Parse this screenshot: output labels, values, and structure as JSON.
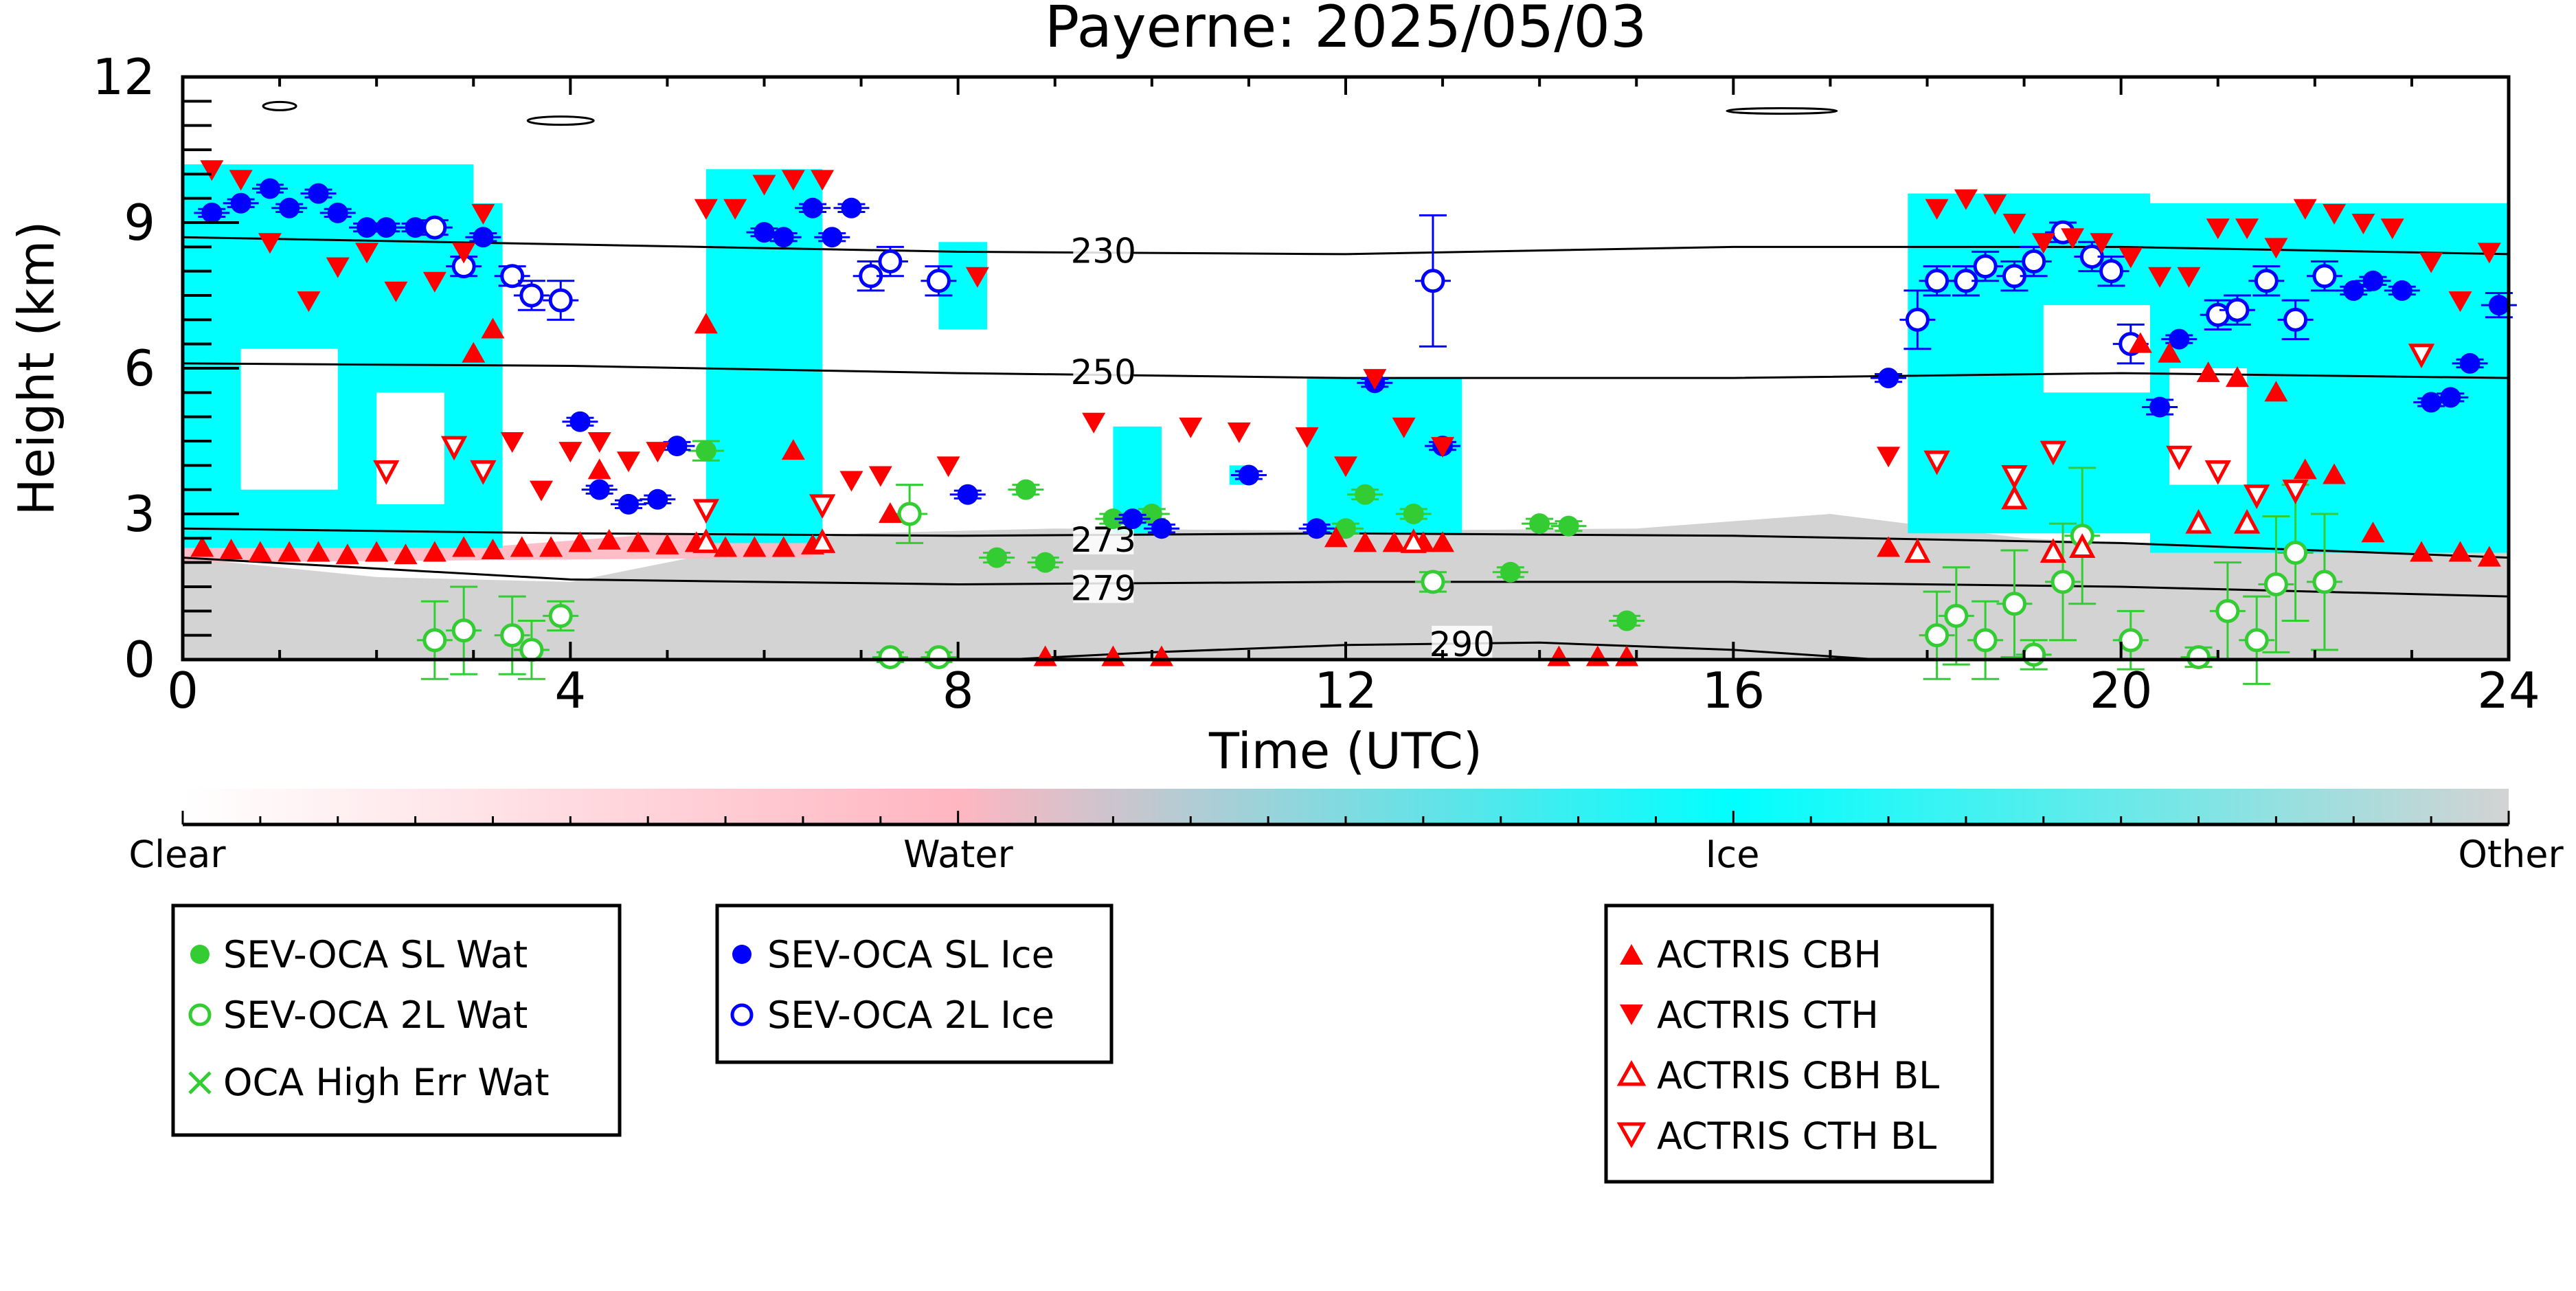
{
  "chart_data": {
    "type": "scatter",
    "title": "Payerne: 2025/05/03",
    "xlabel": "Time (UTC)",
    "ylabel": "Height (km)",
    "xlim": [
      0,
      24
    ],
    "ylim": [
      0,
      12
    ],
    "xticks": [
      "0",
      "4",
      "8",
      "12",
      "16",
      "20",
      "24"
    ],
    "yticks": [
      "0",
      "3",
      "6",
      "9",
      "12"
    ],
    "background": "cloud classification curtain (clear / water / ice / other)",
    "colorbar": {
      "labels": [
        "Clear",
        "Water",
        "Ice",
        "Other"
      ],
      "colors": [
        "#ffffff",
        "#ffb6c1",
        "#00ffff",
        "#d3d3d3"
      ]
    },
    "isotherms": [
      {
        "label": "230",
        "x": [
          0,
          4,
          8,
          12,
          16,
          20,
          24
        ],
        "y": [
          8.7,
          8.55,
          8.4,
          8.35,
          8.5,
          8.5,
          8.35
        ],
        "label_at": [
          9.5,
          8.4
        ]
      },
      {
        "label": "250",
        "x": [
          0,
          4,
          8,
          12,
          16,
          20,
          24
        ],
        "y": [
          6.1,
          6.05,
          5.9,
          5.8,
          5.8,
          5.9,
          5.8
        ],
        "label_at": [
          9.5,
          5.9
        ]
      },
      {
        "label": "273",
        "x": [
          0,
          4,
          8,
          12,
          16,
          20,
          24
        ],
        "y": [
          2.7,
          2.6,
          2.55,
          2.6,
          2.55,
          2.4,
          2.1
        ],
        "label_at": [
          9.5,
          2.45
        ]
      },
      {
        "label": "279",
        "x": [
          0,
          4,
          8,
          12,
          16,
          20,
          24
        ],
        "y": [
          2.1,
          1.65,
          1.55,
          1.6,
          1.6,
          1.5,
          1.3
        ],
        "label_at": [
          9.5,
          1.45
        ]
      },
      {
        "label": "290",
        "x": [
          8.5,
          10,
          12,
          14,
          16,
          17.5
        ],
        "y": [
          0,
          0.15,
          0.3,
          0.35,
          0.2,
          0
        ],
        "label_at": [
          13.2,
          0.3
        ]
      }
    ],
    "series": [
      {
        "name": "SEV-OCA SL Wat",
        "marker": "filled-circle",
        "color": "#33cc33",
        "x": [
          5.4,
          8.4,
          8.7,
          8.9,
          9.6,
          10.0,
          12.0,
          12.2,
          12.7,
          13.7,
          14.0,
          14.3,
          14.9
        ],
        "y": [
          4.3,
          2.1,
          3.5,
          2.0,
          2.9,
          3.0,
          2.7,
          3.4,
          3.0,
          1.8,
          2.8,
          2.75,
          0.8
        ],
        "err": [
          0.2,
          0.1,
          0.1,
          0.1,
          0.1,
          0.1,
          0.1,
          0.1,
          0.1,
          0.1,
          0.1,
          0.1,
          0.1
        ]
      },
      {
        "name": "SEV-OCA 2L Wat",
        "marker": "open-circle",
        "color": "#33cc33",
        "x": [
          2.6,
          2.9,
          3.4,
          3.6,
          3.9,
          7.3,
          7.5,
          7.8,
          12.9,
          18.1,
          18.3,
          18.6,
          18.9,
          19.1,
          19.4,
          19.6,
          20.1,
          20.8,
          21.1,
          21.4,
          21.6,
          21.8,
          22.1
        ],
        "y": [
          0.4,
          0.6,
          0.5,
          0.2,
          0.9,
          0.05,
          3.0,
          0.05,
          1.6,
          0.5,
          0.9,
          0.4,
          1.15,
          0.1,
          1.6,
          2.55,
          0.4,
          0.05,
          1.0,
          0.4,
          1.55,
          2.2,
          1.6
        ],
        "err": [
          0.8,
          0.9,
          0.8,
          0.6,
          0.3,
          0.1,
          0.6,
          0.1,
          0.2,
          0.9,
          1.0,
          0.8,
          1.1,
          0.3,
          1.2,
          1.4,
          0.6,
          0.2,
          1.0,
          0.9,
          1.4,
          1.4,
          1.4
        ]
      },
      {
        "name": "OCA High Err Wat",
        "marker": "cross",
        "color": "#33cc33",
        "x": [],
        "y": []
      },
      {
        "name": "SEV-OCA SL Ice",
        "marker": "filled-circle",
        "color": "#0000ff",
        "x": [
          0.3,
          0.6,
          0.9,
          1.1,
          1.4,
          1.6,
          1.9,
          2.1,
          2.4,
          3.1,
          4.1,
          4.3,
          4.6,
          4.9,
          5.1,
          6.0,
          6.2,
          6.5,
          6.7,
          6.9,
          8.1,
          9.8,
          10.1,
          11.0,
          11.7,
          12.3,
          13.0,
          17.6,
          20.4,
          20.6,
          22.4,
          22.6,
          22.9,
          23.2,
          23.4,
          23.6,
          23.9
        ],
        "y": [
          9.2,
          9.4,
          9.7,
          9.3,
          9.6,
          9.2,
          8.9,
          8.9,
          8.9,
          8.7,
          4.9,
          3.5,
          3.2,
          3.3,
          4.4,
          8.8,
          8.7,
          9.3,
          8.7,
          9.3,
          3.4,
          2.9,
          2.7,
          3.8,
          2.7,
          5.7,
          4.4,
          5.8,
          5.2,
          6.6,
          7.6,
          7.8,
          7.6,
          5.3,
          5.4,
          6.1,
          7.3
        ],
        "err": [
          0.08,
          0.08,
          0.08,
          0.08,
          0.08,
          0.08,
          0.08,
          0.08,
          0.08,
          0.08,
          0.08,
          0.08,
          0.08,
          0.08,
          0.08,
          0.08,
          0.08,
          0.08,
          0.08,
          0.08,
          0.08,
          0.08,
          0.08,
          0.08,
          0.08,
          0.08,
          0.08,
          0.08,
          0.15,
          0.08,
          0.08,
          0.08,
          0.08,
          0.08,
          0.08,
          0.08,
          0.25
        ]
      },
      {
        "name": "SEV-OCA 2L Ice",
        "marker": "open-circle",
        "color": "#0000ff",
        "x": [
          2.6,
          2.9,
          3.4,
          3.6,
          3.9,
          7.1,
          7.3,
          7.8,
          12.9,
          17.9,
          18.1,
          18.4,
          18.6,
          18.9,
          19.1,
          19.4,
          19.7,
          19.9,
          20.1,
          21.0,
          21.2,
          21.5,
          21.8,
          22.1
        ],
        "y": [
          8.9,
          8.1,
          7.9,
          7.5,
          7.4,
          7.9,
          8.2,
          7.8,
          7.8,
          7.0,
          7.8,
          7.8,
          8.1,
          7.9,
          8.2,
          8.8,
          8.3,
          8.0,
          6.5,
          7.1,
          7.2,
          7.8,
          7.0,
          7.9
        ],
        "err": [
          0.15,
          0.2,
          0.2,
          0.3,
          0.4,
          0.3,
          0.3,
          0.3,
          1.35,
          0.6,
          0.3,
          0.3,
          0.3,
          0.3,
          0.3,
          0.2,
          0.3,
          0.3,
          0.4,
          0.3,
          0.3,
          0.3,
          0.4,
          0.3
        ]
      },
      {
        "name": "ACTRIS CBH",
        "marker": "triangle-up-filled",
        "color": "#ff0000",
        "x": [
          0.2,
          0.5,
          0.8,
          1.1,
          1.4,
          1.7,
          2.0,
          2.3,
          2.6,
          2.9,
          3.2,
          3.5,
          3.8,
          4.1,
          4.4,
          4.7,
          5.0,
          5.3,
          5.6,
          5.9,
          6.2,
          6.5,
          3.0,
          3.2,
          4.3,
          5.4,
          6.3,
          7.3,
          8.9,
          9.6,
          10.1,
          11.9,
          12.2,
          12.5,
          12.8,
          13.0,
          14.2,
          14.6,
          14.9,
          17.6,
          20.2,
          20.5,
          20.9,
          21.2,
          21.6,
          21.9,
          22.2,
          22.6,
          23.1,
          23.5,
          23.8
        ],
        "y": [
          2.3,
          2.25,
          2.2,
          2.2,
          2.2,
          2.15,
          2.2,
          2.15,
          2.2,
          2.3,
          2.25,
          2.3,
          2.3,
          2.4,
          2.45,
          2.4,
          2.35,
          2.4,
          2.3,
          2.3,
          2.3,
          2.35,
          6.3,
          6.8,
          3.9,
          6.9,
          4.3,
          3.0,
          0.05,
          0.05,
          0.05,
          2.5,
          2.4,
          2.4,
          2.4,
          2.4,
          0.05,
          0.05,
          0.05,
          2.3,
          6.5,
          6.3,
          5.9,
          5.8,
          5.5,
          3.9,
          3.8,
          2.6,
          2.2,
          2.2,
          2.1
        ]
      },
      {
        "name": "ACTRIS CTH",
        "marker": "triangle-down-filled",
        "color": "#ff0000",
        "x": [
          0.3,
          0.6,
          0.9,
          1.3,
          1.6,
          1.9,
          2.2,
          2.6,
          2.9,
          3.1,
          3.4,
          3.7,
          4.0,
          4.3,
          4.6,
          4.9,
          5.4,
          5.7,
          6.0,
          6.3,
          6.6,
          6.9,
          7.2,
          7.9,
          8.2,
          9.4,
          10.4,
          10.9,
          11.6,
          12.0,
          12.3,
          12.6,
          13.0,
          17.6,
          18.1,
          18.4,
          18.7,
          18.9,
          19.2,
          19.5,
          19.8,
          20.1,
          20.4,
          20.7,
          21.0,
          21.3,
          21.6,
          21.9,
          22.2,
          22.5,
          22.8,
          23.2,
          23.5,
          23.8
        ],
        "y": [
          10.1,
          9.9,
          8.6,
          7.4,
          8.1,
          8.4,
          7.6,
          7.8,
          8.4,
          9.2,
          4.5,
          3.5,
          4.3,
          4.5,
          4.1,
          4.3,
          9.3,
          9.3,
          9.8,
          9.9,
          9.9,
          3.7,
          3.8,
          4.0,
          7.9,
          4.9,
          4.8,
          4.7,
          4.6,
          4.0,
          5.8,
          4.8,
          4.4,
          4.2,
          9.3,
          9.5,
          9.4,
          9.0,
          8.6,
          8.7,
          8.6,
          8.3,
          7.9,
          7.9,
          8.9,
          8.9,
          8.5,
          9.3,
          9.2,
          9.0,
          8.9,
          8.2,
          7.4,
          8.4
        ]
      },
      {
        "name": "ACTRIS CBH BL",
        "marker": "triangle-up-open",
        "color": "#ff0000",
        "x": [
          5.4,
          6.6,
          12.7,
          17.9,
          18.9,
          19.3,
          19.6,
          20.8,
          21.3
        ],
        "y": [
          2.4,
          2.4,
          2.4,
          2.2,
          3.3,
          2.2,
          2.3,
          2.8,
          2.8
        ]
      },
      {
        "name": "ACTRIS CTH BL",
        "marker": "triangle-down-open",
        "color": "#ff0000",
        "x": [
          2.1,
          2.8,
          3.1,
          5.4,
          6.6,
          18.1,
          18.9,
          19.3,
          20.6,
          21.0,
          21.4,
          21.8,
          23.1
        ],
        "y": [
          3.9,
          4.4,
          3.9,
          3.1,
          3.2,
          4.1,
          3.8,
          4.3,
          4.2,
          3.9,
          3.4,
          3.5,
          6.3
        ]
      }
    ]
  }
}
